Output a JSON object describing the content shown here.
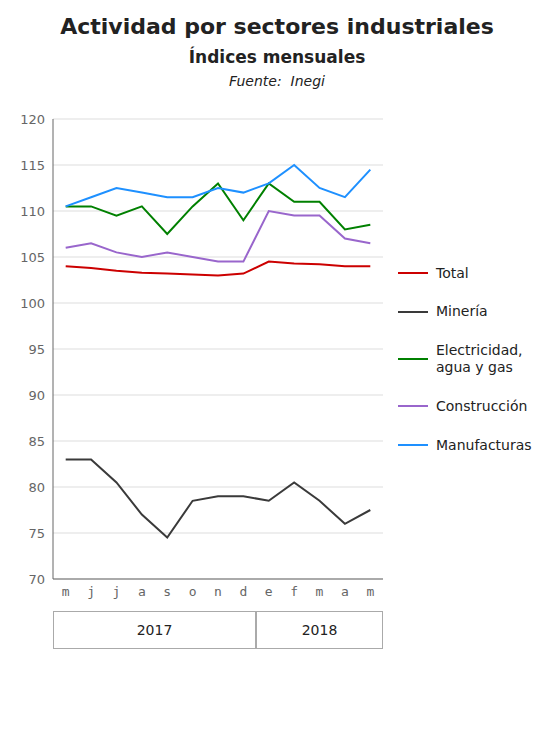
{
  "chart_data": {
    "type": "line",
    "title": "Actividad por sectores industriales",
    "subtitle": "Índices mensuales",
    "source": "Fuente:  Inegi",
    "categories": [
      "m",
      "j",
      "j",
      "a",
      "s",
      "o",
      "n",
      "d",
      "e",
      "f",
      "m",
      "a",
      "m"
    ],
    "series": [
      {
        "name": "Total",
        "color": "#cc0000",
        "values": [
          104.0,
          103.8,
          103.5,
          103.3,
          103.2,
          103.1,
          103.0,
          103.2,
          104.5,
          104.3,
          104.2,
          104.0,
          104.0
        ]
      },
      {
        "name": "Minería",
        "color": "#3a3a3a",
        "values": [
          83.0,
          83.0,
          80.5,
          77.0,
          74.5,
          78.5,
          79.0,
          79.0,
          78.5,
          80.5,
          78.5,
          76.0,
          77.5
        ]
      },
      {
        "name": "Electricidad,\nagua y gas",
        "color": "#008000",
        "values": [
          110.5,
          110.5,
          109.5,
          110.5,
          107.5,
          110.5,
          113.0,
          109.0,
          113.0,
          111.0,
          111.0,
          108.0,
          108.5
        ]
      },
      {
        "name": "Construcción",
        "color": "#9966cc",
        "values": [
          106.0,
          106.5,
          105.5,
          105.0,
          105.5,
          105.0,
          104.5,
          104.5,
          110.0,
          109.5,
          109.5,
          107.0,
          106.5
        ]
      },
      {
        "name": "Manufacturas",
        "color": "#1e90ff",
        "values": [
          110.5,
          111.5,
          112.5,
          112.0,
          111.5,
          111.5,
          112.5,
          112.0,
          113.0,
          115.0,
          112.5,
          111.5,
          114.5
        ]
      }
    ],
    "ylim": [
      70,
      120
    ],
    "yticks": [
      70,
      75,
      80,
      85,
      90,
      95,
      100,
      105,
      110,
      115,
      120
    ],
    "grid": true,
    "legend": "right",
    "annotations": [
      {
        "text": "2017",
        "first": 0,
        "last": 7
      },
      {
        "text": "2018",
        "first": 8,
        "last": 12
      }
    ]
  }
}
